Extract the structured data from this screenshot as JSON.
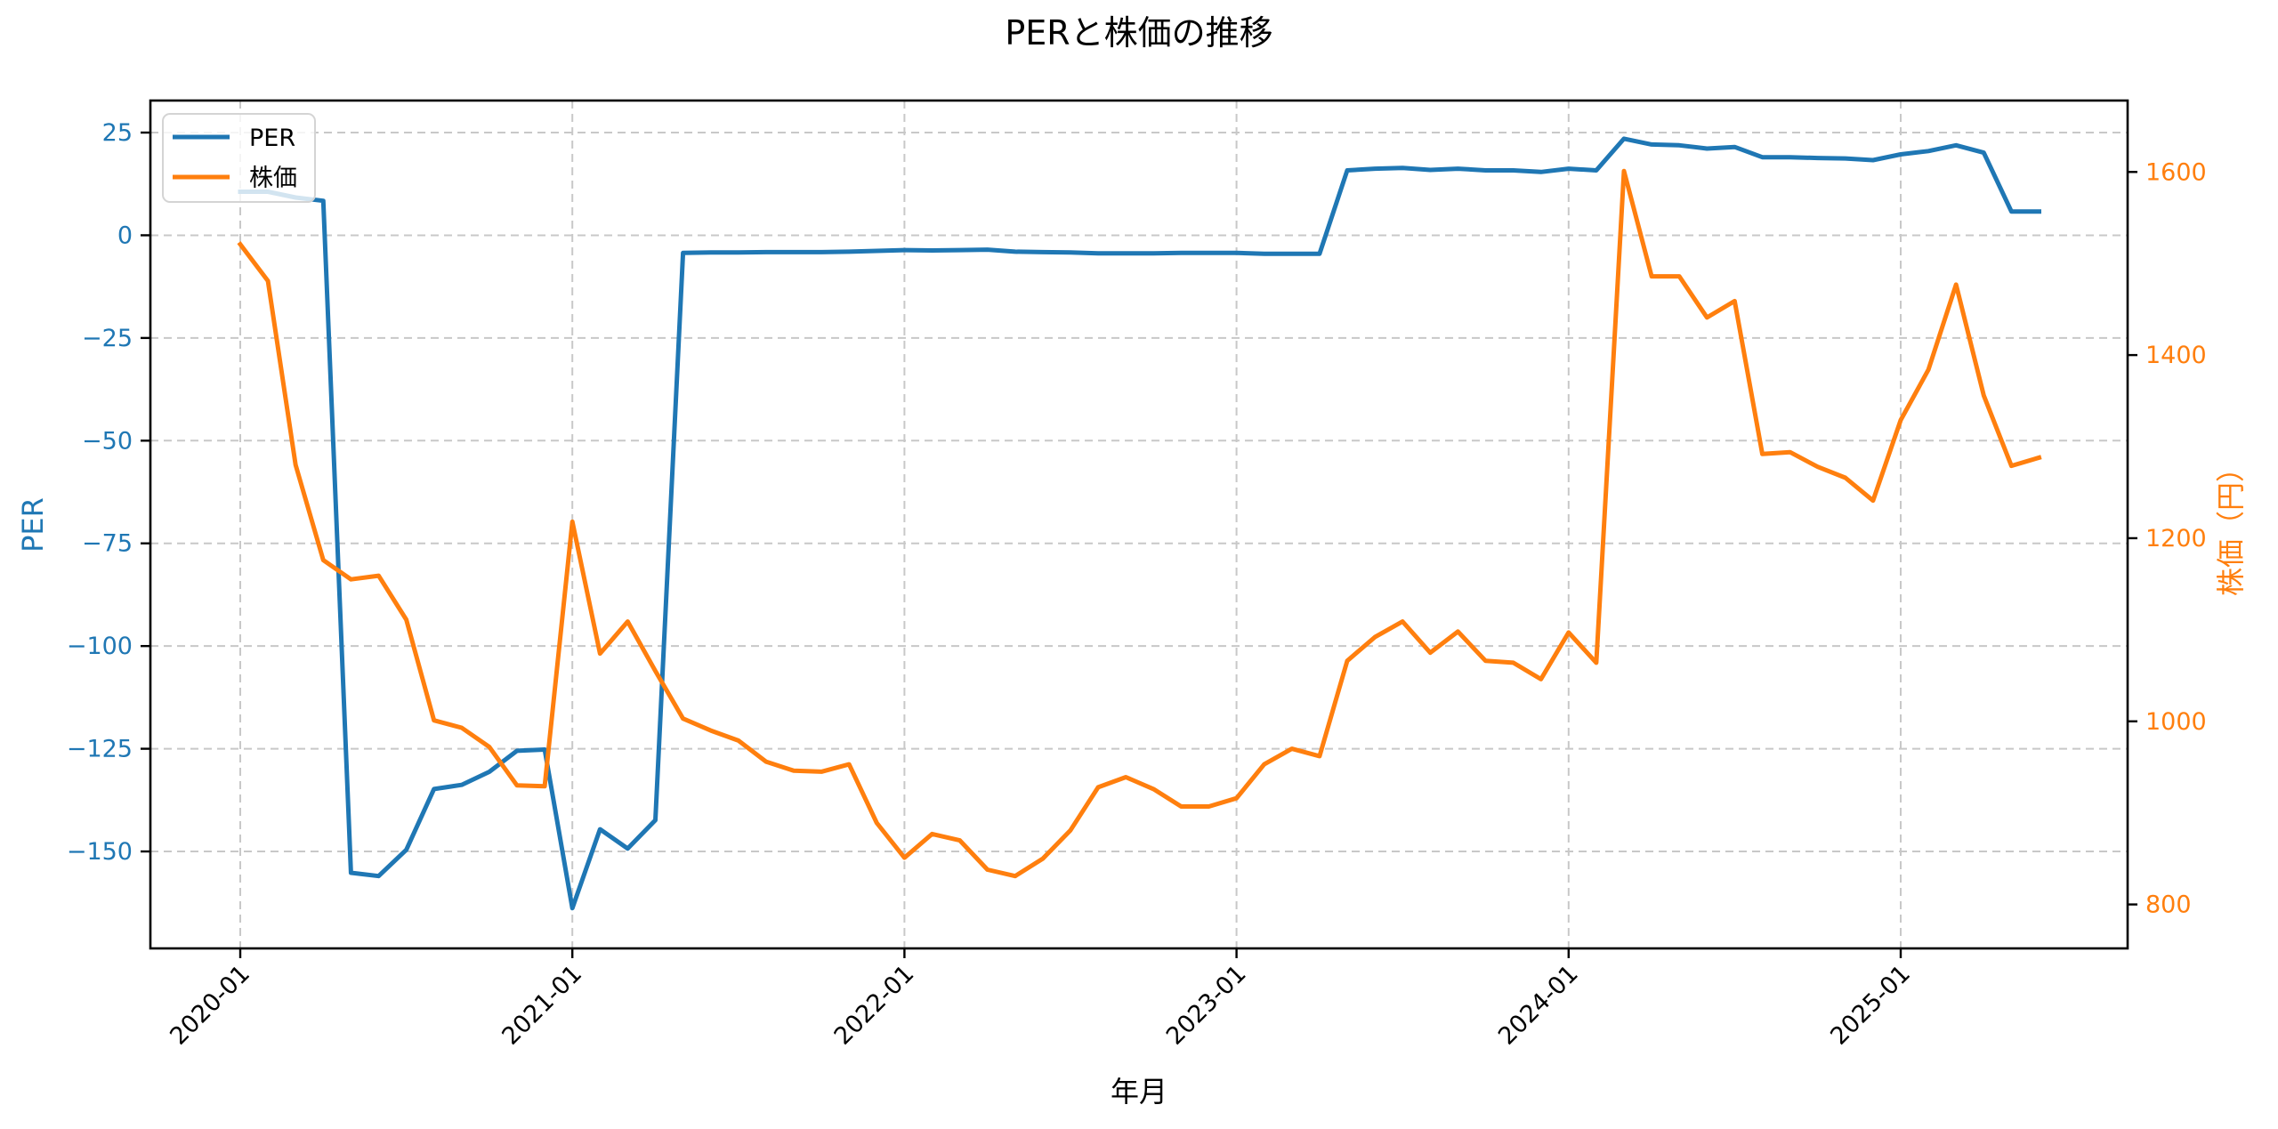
{
  "chart_data": {
    "type": "line",
    "title": "PERと株価の推移",
    "xlabel": "年月",
    "ylabel_left": "PER",
    "ylabel_right": "株価（円）",
    "x": [
      "2020-01",
      "2020-02",
      "2020-03",
      "2020-04",
      "2020-05",
      "2020-06",
      "2020-07",
      "2020-08",
      "2020-09",
      "2020-10",
      "2020-11",
      "2020-12",
      "2021-01",
      "2021-02",
      "2021-03",
      "2021-04",
      "2021-05",
      "2021-06",
      "2021-07",
      "2021-08",
      "2021-09",
      "2021-10",
      "2021-11",
      "2021-12",
      "2022-01",
      "2022-02",
      "2022-03",
      "2022-04",
      "2022-05",
      "2022-06",
      "2022-07",
      "2022-08",
      "2022-09",
      "2022-10",
      "2022-11",
      "2022-12",
      "2023-01",
      "2023-02",
      "2023-03",
      "2023-04",
      "2023-05",
      "2023-06",
      "2023-07",
      "2023-08",
      "2023-09",
      "2023-10",
      "2023-11",
      "2023-12",
      "2024-01",
      "2024-02",
      "2024-03",
      "2024-04",
      "2024-05",
      "2024-06",
      "2024-07",
      "2024-08",
      "2024-09",
      "2024-10",
      "2024-11",
      "2024-12",
      "2025-01",
      "2025-02",
      "2025-03",
      "2025-04",
      "2025-05",
      "2025-06"
    ],
    "series": [
      {
        "name": "PER",
        "axis": "left",
        "color": "#1f77b4",
        "values": [
          10.6,
          10.6,
          9.2,
          8.4,
          -155.2,
          -156.0,
          -149.6,
          -134.8,
          -133.8,
          -130.6,
          -125.5,
          -125.2,
          -163.8,
          -144.6,
          -149.3,
          -142.4,
          -4.3,
          -4.2,
          -4.2,
          -4.1,
          -4.1,
          -4.1,
          -4.0,
          -3.8,
          -3.6,
          -3.7,
          -3.6,
          -3.5,
          -4.0,
          -4.1,
          -4.2,
          -4.4,
          -4.4,
          -4.4,
          -4.3,
          -4.3,
          -4.3,
          -4.5,
          -4.5,
          -4.5,
          15.8,
          16.2,
          16.4,
          15.9,
          16.2,
          15.8,
          15.8,
          15.4,
          16.2,
          15.8,
          23.5,
          22.1,
          21.9,
          21.1,
          21.5,
          19.0,
          19.0,
          18.8,
          18.7,
          18.3,
          19.7,
          20.5,
          21.9,
          20.1,
          5.8,
          5.8
        ]
      },
      {
        "name": "株価",
        "axis": "right",
        "color": "#ff7f0e",
        "values": [
          1521,
          1481,
          1280,
          1176,
          1155,
          1159,
          1111,
          1001,
          993,
          972,
          930,
          929,
          1218,
          1074,
          1109,
          1055,
          1003,
          990,
          979,
          956,
          946,
          945,
          953,
          889,
          851,
          877,
          870,
          838,
          831,
          850,
          881,
          928,
          939,
          926,
          907,
          907,
          916,
          953,
          970,
          962,
          1066,
          1092,
          1109,
          1075,
          1098,
          1066,
          1064,
          1046,
          1097,
          1064,
          1601,
          1486,
          1486,
          1441,
          1459,
          1292,
          1294,
          1278,
          1266,
          1241,
          1329,
          1384,
          1477,
          1356,
          1279,
          1288
        ]
      }
    ],
    "ylim_left": [
      -173.6,
      32.8
    ],
    "ylim_right": [
      752,
      1678
    ],
    "yticks_left": [
      25,
      0,
      -25,
      -50,
      -75,
      -100,
      -125,
      -150
    ],
    "yticks_right": [
      1600,
      1400,
      1200,
      1000,
      800
    ],
    "xticks": [
      "2020-01",
      "2021-01",
      "2022-01",
      "2023-01",
      "2024-01",
      "2025-01"
    ],
    "grid": true,
    "legend_position": "upper left",
    "legend": [
      "PER",
      "株価"
    ]
  },
  "colors": {
    "per": "#1f77b4",
    "price": "#ff7f0e",
    "grid": "#c8c8c8"
  }
}
